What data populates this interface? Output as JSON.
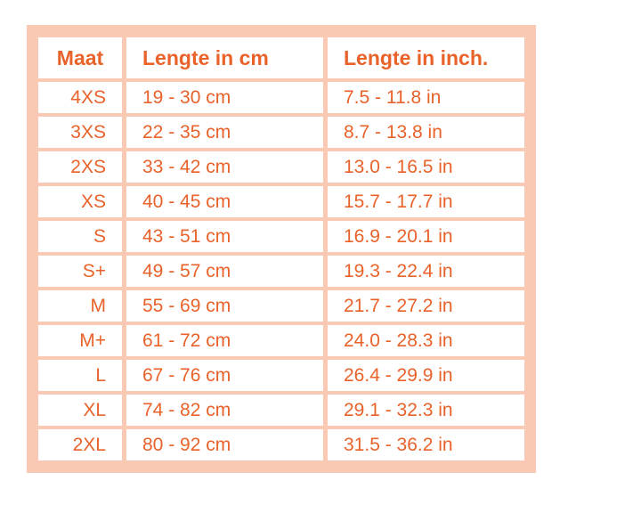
{
  "table": {
    "header": [
      "Maat",
      "Lengte in cm",
      "Lengte in inch."
    ],
    "rows": [
      [
        "4XS",
        "19 - 30 cm",
        "7.5 - 11.8 in"
      ],
      [
        "3XS",
        "22 - 35 cm",
        "8.7 - 13.8 in"
      ],
      [
        "2XS",
        "33 - 42 cm",
        "13.0 - 16.5 in"
      ],
      [
        "XS",
        "40 - 45 cm",
        "15.7 - 17.7 in"
      ],
      [
        "S",
        "43 - 51 cm",
        "16.9 - 20.1 in"
      ],
      [
        "S+",
        "49 - 57 cm",
        "19.3 - 22.4 in"
      ],
      [
        "M",
        "55 - 69 cm",
        "21.7 - 27.2 in"
      ],
      [
        "M+",
        "61 - 72 cm",
        "24.0 - 28.3 in"
      ],
      [
        "L",
        "67 - 76 cm",
        "26.4 - 29.9 in"
      ],
      [
        "XL",
        "74 - 82 cm",
        "29.1 - 32.3 in"
      ],
      [
        "2XL",
        "80 - 92 cm",
        "31.5 - 36.2 in"
      ]
    ]
  }
}
